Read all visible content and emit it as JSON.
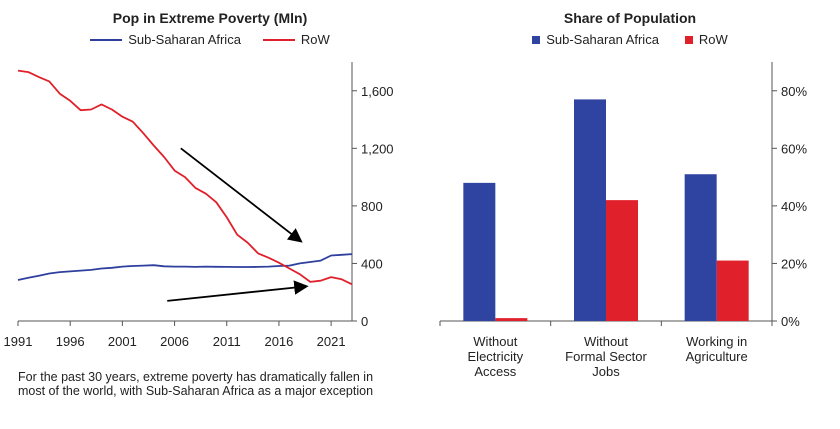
{
  "chart_data": [
    {
      "type": "line",
      "title": "Pop in Extreme Poverty (Mln)",
      "xlim": [
        1991,
        2023
      ],
      "ylim": [
        0,
        1800
      ],
      "x_ticks": [
        1991,
        1996,
        2001,
        2006,
        2011,
        2016,
        2021
      ],
      "x_tick_labels": [
        "1991",
        "1996",
        "2001",
        "2006",
        "2011",
        "2016",
        "2021"
      ],
      "y_ticks": [
        0,
        400,
        800,
        1200,
        1600
      ],
      "y_tick_labels": [
        "0",
        "400",
        "800",
        "1,200",
        "1,600"
      ],
      "y_axis_side": "right",
      "legend_position": "top-center",
      "series": [
        {
          "name": "Sub-Saharan Africa",
          "color": "#2f3f9e",
          "x": [
            1991,
            1992,
            1993,
            1994,
            1995,
            1996,
            1997,
            1998,
            1999,
            2000,
            2001,
            2002,
            2003,
            2004,
            2005,
            2006,
            2007,
            2008,
            2009,
            2010,
            2011,
            2012,
            2013,
            2014,
            2015,
            2016,
            2017,
            2018,
            2019,
            2020,
            2021,
            2022,
            2023
          ],
          "y": [
            285,
            300,
            315,
            330,
            340,
            345,
            350,
            355,
            365,
            370,
            378,
            382,
            385,
            388,
            380,
            378,
            378,
            376,
            378,
            377,
            376,
            375,
            375,
            376,
            378,
            382,
            385,
            400,
            410,
            420,
            455,
            460,
            465
          ]
        },
        {
          "name": "RoW",
          "color": "#e0202a",
          "x": [
            1991,
            1992,
            1993,
            1994,
            1995,
            1996,
            1997,
            1998,
            1999,
            2000,
            2001,
            2002,
            2003,
            2004,
            2005,
            2006,
            2007,
            2008,
            2009,
            2010,
            2011,
            2012,
            2013,
            2014,
            2015,
            2016,
            2017,
            2018,
            2019,
            2020,
            2021,
            2022,
            2023
          ],
          "y": [
            1740,
            1730,
            1695,
            1665,
            1580,
            1530,
            1465,
            1470,
            1505,
            1470,
            1420,
            1385,
            1305,
            1220,
            1140,
            1045,
            1000,
            925,
            885,
            825,
            720,
            600,
            545,
            470,
            440,
            405,
            365,
            325,
            272,
            280,
            305,
            290,
            255
          ]
        }
      ],
      "annotations": [
        {
          "type": "arrow",
          "from": [
            2006.6,
            1200
          ],
          "to": [
            2018,
            560
          ]
        },
        {
          "type": "arrow",
          "from": [
            2005.3,
            140
          ],
          "to": [
            2018.5,
            240
          ]
        }
      ]
    },
    {
      "type": "bar",
      "title": "Share of Population",
      "categories": [
        "Without Electricity Access",
        "Without Formal Sector Jobs",
        "Working in Agriculture"
      ],
      "category_label_lines": [
        [
          "Without",
          "Electricity",
          "Access"
        ],
        [
          "Without",
          "Formal Sector",
          "Jobs"
        ],
        [
          "Working in",
          "Agriculture"
        ]
      ],
      "ylim": [
        0,
        0.9
      ],
      "y_ticks": [
        0,
        0.2,
        0.4,
        0.6,
        0.8
      ],
      "y_tick_labels": [
        "0%",
        "20%",
        "40%",
        "60%",
        "80%"
      ],
      "y_axis_side": "right",
      "legend_position": "top-center",
      "series": [
        {
          "name": "Sub-Saharan Africa",
          "color": "#2f44a0",
          "values": [
            0.48,
            0.77,
            0.51
          ]
        },
        {
          "name": "RoW",
          "color": "#e0202a",
          "values": [
            0.01,
            0.42,
            0.21
          ]
        }
      ]
    }
  ],
  "caption": "For the past 30 years, extreme poverty has dramatically fallen in most of the world, with Sub-Saharan Africa as a major exception"
}
